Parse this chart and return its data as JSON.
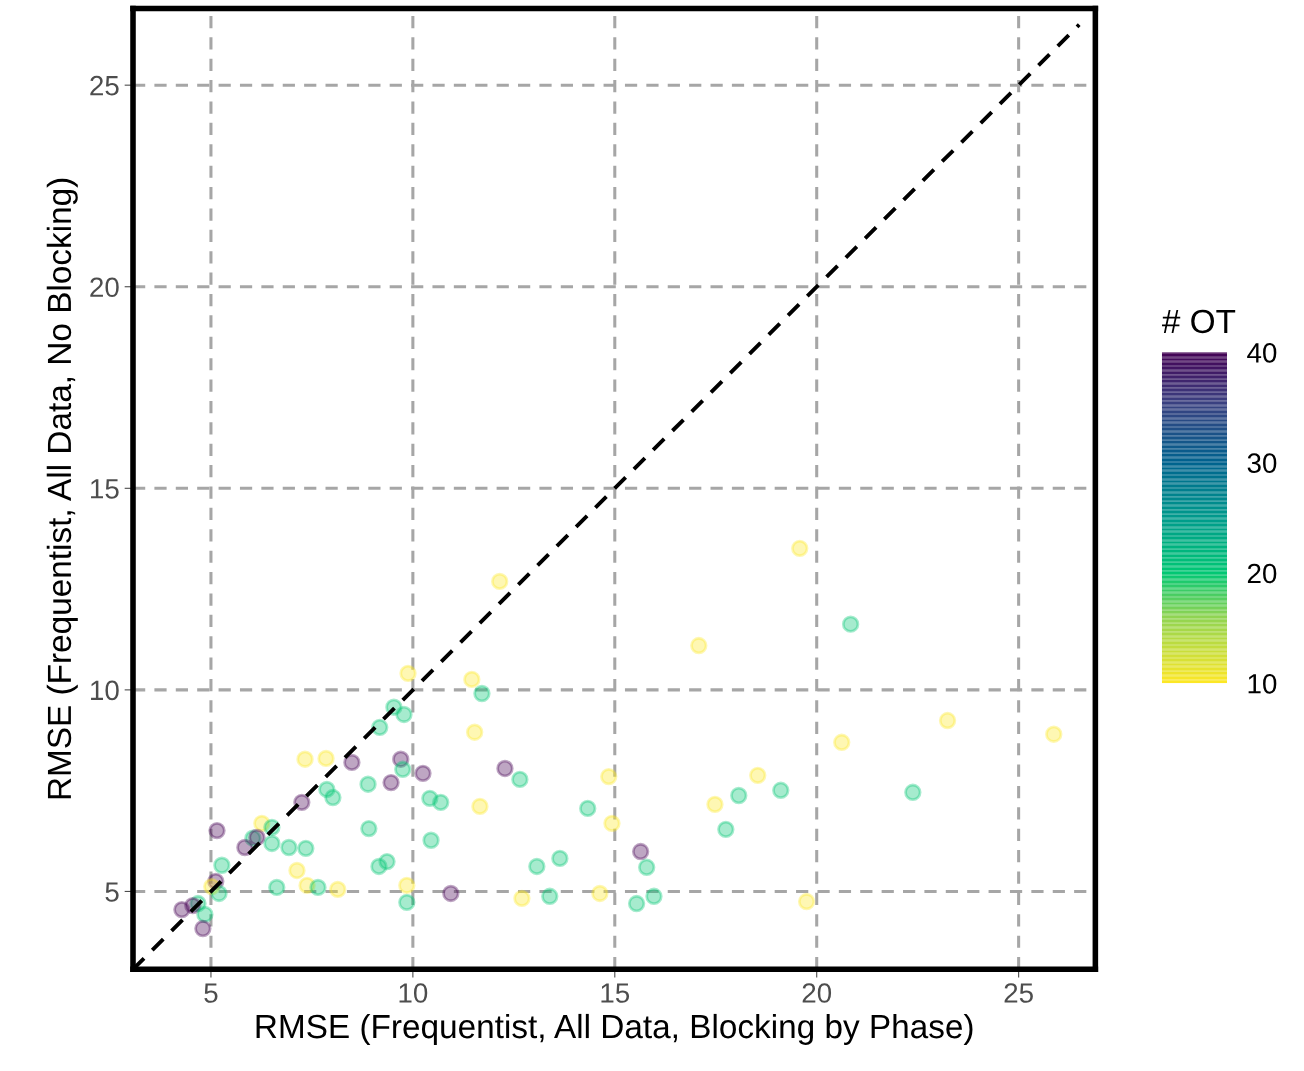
{
  "chart_data": {
    "type": "scatter",
    "xlabel": "RMSE (Frequentist, All Data, Blocking by Phase)",
    "ylabel": "RMSE (Frequentist, All Data, No Blocking)",
    "clabel": "# OT",
    "xlim": [
      3.07,
      26.9
    ],
    "ylim": [
      3.07,
      26.9
    ],
    "xticks": [
      5,
      10,
      15,
      20,
      25
    ],
    "yticks": [
      5,
      10,
      15,
      20,
      25
    ],
    "clim": [
      10,
      40
    ],
    "cticks": [
      10,
      20,
      30,
      40
    ],
    "grid": true,
    "legend": false,
    "marker": "circle",
    "series": [
      {
        "x": [
          9.88,
          9.53,
          9.78,
          9.18,
          7.33,
          7.85,
          8.49,
          9.7,
          9.75,
          10.25,
          8.89,
          9.46,
          7.87,
          8.02,
          7.25,
          10.42,
          10.69,
          8.91,
          10.45,
          5.15,
          6.26,
          6.51,
          6.04,
          6.14,
          5.84,
          6.51,
          6.93,
          7.35,
          5.27,
          9.16,
          9.36,
          7.13,
          7.38,
          6.63,
          7.65,
          8.14,
          9.85,
          9.85,
          10.94,
          5.12,
          5.02,
          5.2,
          4.68,
          4.55,
          4.28,
          4.85,
          4.8,
          12.15,
          17.08,
          11.46,
          11.71,
          11.53,
          12.28,
          12.65,
          11.66,
          14.33,
          14.85,
          14.93,
          17.48,
          17.75,
          15.64,
          15.79,
          13.07,
          13.64,
          12.7,
          13.39,
          14.63,
          15.54,
          15.97,
          19.58,
          20.84,
          23.24,
          25.87,
          20.62,
          18.54,
          19.11,
          18.07,
          22.38,
          19.75
        ],
        "values": [
          10.41,
          9.57,
          9.39,
          9.07,
          8.28,
          8.3,
          8.2,
          8.28,
          8.03,
          7.93,
          7.66,
          7.7,
          7.53,
          7.33,
          7.21,
          7.31,
          7.21,
          6.56,
          6.27,
          6.51,
          6.69,
          6.59,
          6.32,
          6.34,
          6.09,
          6.19,
          6.09,
          6.07,
          5.65,
          5.62,
          5.74,
          5.52,
          5.15,
          5.1,
          5.1,
          5.05,
          5.15,
          4.73,
          4.95,
          5.25,
          5.12,
          4.95,
          4.7,
          4.65,
          4.55,
          4.43,
          4.08,
          12.69,
          11.1,
          10.26,
          9.91,
          8.95,
          8.05,
          7.78,
          7.11,
          7.06,
          7.85,
          6.69,
          7.16,
          6.54,
          5.99,
          5.6,
          5.62,
          5.82,
          4.83,
          4.88,
          4.95,
          4.7,
          4.88,
          13.51,
          11.63,
          9.24,
          8.9,
          8.7,
          7.88,
          7.51,
          7.38,
          7.46,
          4.75
        ],
        "colors": [
          "#fde725",
          "#00c774",
          "#00c774",
          "#00c774",
          "#fde725",
          "#fde725",
          "#440154",
          "#440154",
          "#00c774",
          "#440154",
          "#00c774",
          "#440154",
          "#00c774",
          "#00c774",
          "#440154",
          "#00c774",
          "#00c774",
          "#00c774",
          "#00c774",
          "#440154",
          "#fde725",
          "#00c774",
          "#00c774",
          "#440154",
          "#440154",
          "#00c774",
          "#00c774",
          "#00c774",
          "#00c774",
          "#00c774",
          "#00c774",
          "#fde725",
          "#fde725",
          "#00c774",
          "#00c774",
          "#fde725",
          "#fde725",
          "#00c774",
          "#440154",
          "#440154",
          "#fde725",
          "#00c774",
          "#00c774",
          "#440154",
          "#440154",
          "#00c774",
          "#440154",
          "#fde725",
          "#fde725",
          "#fde725",
          "#00c774",
          "#fde725",
          "#440154",
          "#00c774",
          "#fde725",
          "#00c774",
          "#fde725",
          "#fde725",
          "#fde725",
          "#00c774",
          "#440154",
          "#00c774",
          "#00c774",
          "#00c774",
          "#fde725",
          "#00c774",
          "#fde725",
          "#00c774",
          "#00c774",
          "#fde725",
          "#00c774",
          "#fde725",
          "#fde725",
          "#fde725",
          "#fde725",
          "#00c774",
          "#00c774",
          "#00c774",
          "#fde725"
        ]
      },
      {
        "type": "line",
        "x": [
          3.07,
          26.5
        ],
        "values": [
          3.07,
          26.5
        ],
        "color": "#000000",
        "line_style": "dashed",
        "marker": "none"
      }
    ]
  }
}
